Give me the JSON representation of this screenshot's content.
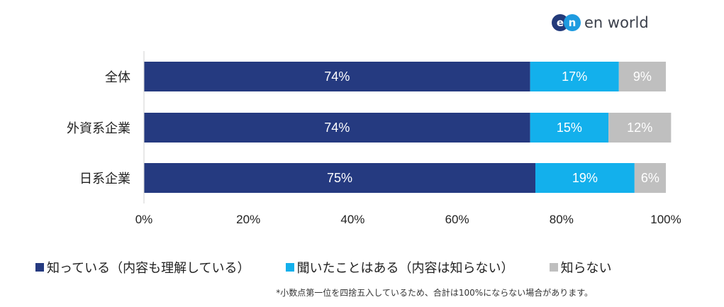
{
  "logo": {
    "mark_e": "e",
    "mark_n": "n",
    "text": "en world"
  },
  "chart_data": {
    "type": "bar",
    "orientation": "horizontal",
    "stacked": true,
    "categories": [
      "全体",
      "外資系企業",
      "日系企業"
    ],
    "series": [
      {
        "name": "知っている（内容も理解している）",
        "values": [
          74,
          74,
          75
        ],
        "labels": [
          "74%",
          "74%",
          "75%"
        ],
        "color": "#253a80"
      },
      {
        "name": "聞いたことはある（内容は知らない）",
        "values": [
          17,
          15,
          19
        ],
        "labels": [
          "17%",
          "15%",
          "19%"
        ],
        "color": "#13b0ec"
      },
      {
        "name": "知らない",
        "values": [
          9,
          12,
          6
        ],
        "labels": [
          "9%",
          "12%",
          "6%"
        ],
        "color": "#bfbfbf"
      }
    ],
    "xlim": [
      0,
      100
    ],
    "xticks": [
      "0%",
      "20%",
      "40%",
      "60%",
      "80%",
      "100%"
    ],
    "grid": false,
    "legend_position": "bottom"
  },
  "footnote": "*小数点第一位を四捨五入しているため、合計は100%にならない場合があります。"
}
